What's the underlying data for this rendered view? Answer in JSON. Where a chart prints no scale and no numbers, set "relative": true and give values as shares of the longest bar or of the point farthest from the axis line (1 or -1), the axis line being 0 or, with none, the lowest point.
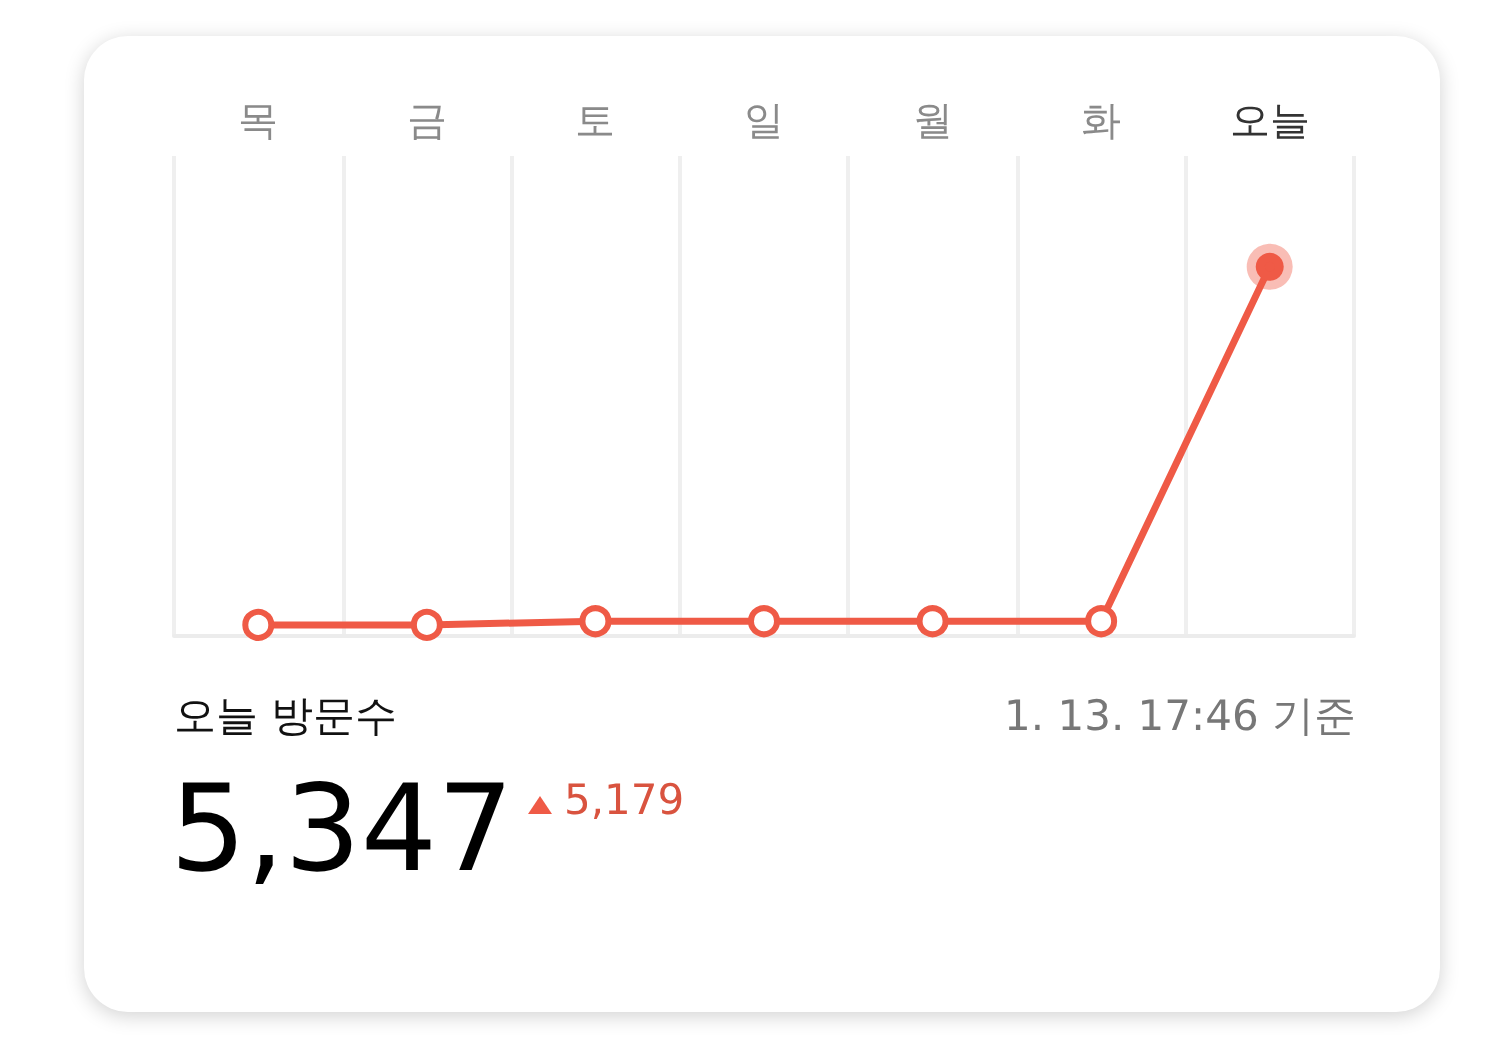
{
  "chart_data": {
    "type": "line",
    "relative": true,
    "categories": [
      "목",
      "금",
      "토",
      "일",
      "월",
      "화",
      "오늘"
    ],
    "series": [
      {
        "color": "#ef5a46",
        "values": [
          0.03,
          0.03,
          0.04,
          0.04,
          0.04,
          0.04,
          1
        ]
      }
    ],
    "marker": "circle",
    "grid": "x",
    "annotations": [
      "오늘 방문수",
      "1. 13. 17:46 기준",
      "5,347",
      "5,179"
    ]
  }
}
